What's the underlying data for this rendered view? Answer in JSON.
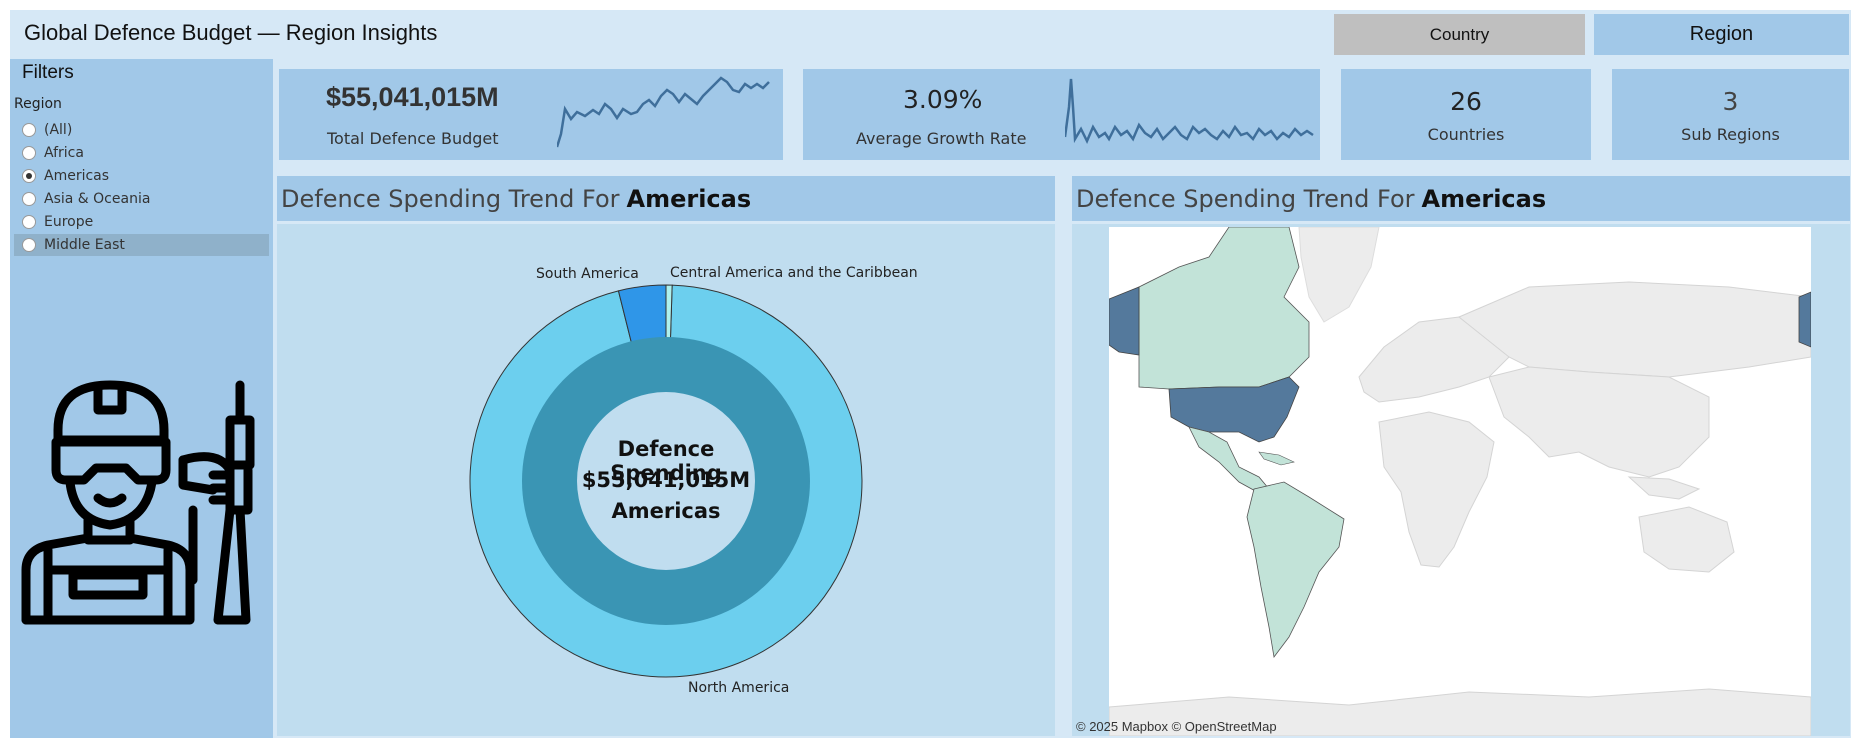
{
  "header": {
    "title": "Global Defence Budget — Region Insights",
    "country_button": "Country",
    "region_button": "Region"
  },
  "sidebar": {
    "title": "Filters",
    "region_label": "Region",
    "options": [
      {
        "label": "(All)",
        "selected": false
      },
      {
        "label": "Africa",
        "selected": false
      },
      {
        "label": "Americas",
        "selected": true
      },
      {
        "label": "Asia & Oceania",
        "selected": false
      },
      {
        "label": "Europe",
        "selected": false
      },
      {
        "label": "Middle East",
        "selected": false
      }
    ]
  },
  "kpis": {
    "budget": {
      "value": "$55,041,015M",
      "label": "Total Defence Budget"
    },
    "growth": {
      "value": "3.09%",
      "label": "Average Growth Rate"
    },
    "countries": {
      "value": "26",
      "label": "Countries"
    },
    "subregions": {
      "value": "3",
      "label": "Sub Regions"
    }
  },
  "panels": {
    "donut_title_prefix": "Defence Spending Trend For",
    "donut_title_region": "Americas",
    "map_title_prefix": "Defence Spending Trend For",
    "map_title_region": "Americas",
    "map_credit": "© 2025 Mapbox © OpenStreetMap"
  },
  "donut": {
    "center_line1": "Defence Spending",
    "center_line2": "$55,041,015M",
    "center_line3": "Americas",
    "labels": {
      "south_america": "South America",
      "central_america": "Central America and the Caribbean",
      "north_america": "North America"
    }
  },
  "chart_data": [
    {
      "type": "pie",
      "categories": [
        "North America",
        "South America",
        "Central America and the Caribbean"
      ],
      "values": [
        95.6,
        3.9,
        0.5
      ],
      "colors": [
        "#6ccfee",
        "#2f96e8",
        "#aef0ee"
      ]
    }
  ],
  "colors": {
    "panel": "#a1c8e8",
    "background": "#d6e8f6",
    "donut_outer": "#6ccfee",
    "donut_inner": "#3a95b4",
    "map_highlight": "#c2e3d8",
    "map_selected": "#54799c"
  }
}
